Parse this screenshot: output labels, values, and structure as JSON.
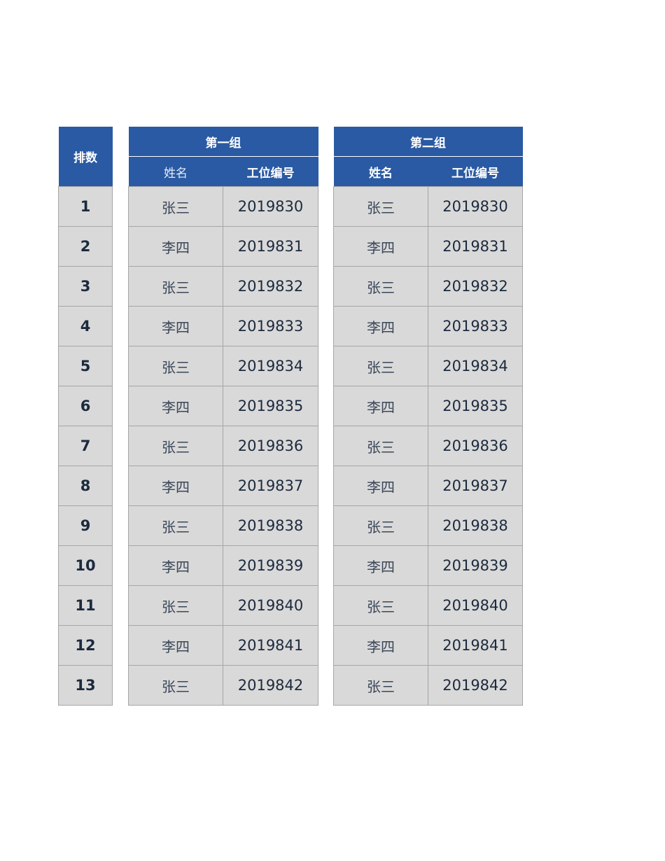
{
  "rank_header": "排数",
  "groups": [
    {
      "title": "第一组",
      "col_name": "姓名",
      "col_id": "工位编号"
    },
    {
      "title": "第二组",
      "col_name": "姓名",
      "col_id": "工位编号"
    }
  ],
  "rows": [
    {
      "rank": "1",
      "name": "张三",
      "id": "2019830"
    },
    {
      "rank": "2",
      "name": "李四",
      "id": "2019831"
    },
    {
      "rank": "3",
      "name": "张三",
      "id": "2019832"
    },
    {
      "rank": "4",
      "name": "李四",
      "id": "2019833"
    },
    {
      "rank": "5",
      "name": "张三",
      "id": "2019834"
    },
    {
      "rank": "6",
      "name": "李四",
      "id": "2019835"
    },
    {
      "rank": "7",
      "name": "张三",
      "id": "2019836"
    },
    {
      "rank": "8",
      "name": "李四",
      "id": "2019837"
    },
    {
      "rank": "9",
      "name": "张三",
      "id": "2019838"
    },
    {
      "rank": "10",
      "name": "李四",
      "id": "2019839"
    },
    {
      "rank": "11",
      "name": "张三",
      "id": "2019840"
    },
    {
      "rank": "12",
      "name": "李四",
      "id": "2019841"
    },
    {
      "rank": "13",
      "name": "张三",
      "id": "2019842"
    }
  ],
  "colors": {
    "header": "#2a5aa3",
    "cell": "#d9d9d9",
    "border": "#a6a6a6"
  }
}
